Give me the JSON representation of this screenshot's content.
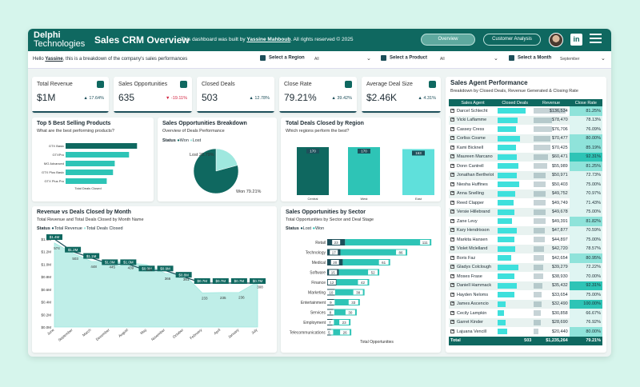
{
  "header": {
    "logo_line1": "Delphi",
    "logo_line2": "Technologies",
    "title": "Sales CRM Overview",
    "byline_prefix": "This dashboard was built by",
    "byline_author": "Yassine Mahboub",
    "byline_suffix": ". All rights reserved © 2025",
    "btn_overview": "Overview",
    "btn_customer": "Customer Analysis",
    "linkedin_label": "in",
    "colors": {
      "header_bg": "#0f6860",
      "accent": "#2ec4b6",
      "dark": "#1d4f5a",
      "negative": "#d21f3c"
    }
  },
  "filterbar": {
    "intro_prefix": "Hello",
    "intro_user": "Yassine",
    "intro_suffix": ", this is a breakdown of the company's sales performances",
    "region_label": "Select a Region",
    "region_value": "All",
    "product_label": "Select a Product",
    "product_value": "All",
    "month_label": "Select a Month",
    "month_value": "September"
  },
  "kpis": [
    {
      "label": "Total Revenue",
      "value": "$1M",
      "delta": "▲ 17.64%"
    },
    {
      "label": "Sales Opportunities",
      "value": "635",
      "delta": "▼ -19.11%"
    },
    {
      "label": "Closed Deals",
      "value": "503",
      "delta": "▲ 12.78%"
    },
    {
      "label": "Close Rate",
      "value": "79.21%",
      "delta": "▲ 39.42%"
    },
    {
      "label": "Average Deal Size",
      "value": "$2.46K",
      "delta": "▲ 4.31%"
    }
  ],
  "top_products": {
    "title": "Top 5 Best Selling Products",
    "subtitle": "What are the best performing products?",
    "xlabel": "Total Deals Closed"
  },
  "opp_breakdown": {
    "title": "Sales Opportunities Breakdown",
    "subtitle": "Overview of Deals Performance",
    "legend_title": "Status",
    "legend_won": "Won",
    "legend_lost": "Lost",
    "label_lost": "Lost 20.79%",
    "label_won": "Won 79.21%"
  },
  "region_deals": {
    "title": "Total Deals Closed by Region",
    "subtitle": "Which regions perform the best?"
  },
  "rev_vs_deals": {
    "title": "Revenue vs Deals Closed by Month",
    "subtitle": "Total Revenue and Total Deals Closed by Month Name",
    "legend_title": "Status",
    "legend_rev": "Total Revenue",
    "legend_deals": "Total Deals Closed"
  },
  "sector_opps": {
    "title": "Sales Opportunities by Sector",
    "subtitle": "Total Opportunities by Sector and Deal Stage",
    "legend_title": "Status",
    "legend_lost": "Lost",
    "legend_won": "Won",
    "xlabel": "Total Opportunities"
  },
  "agent_perf": {
    "title": "Sales Agent Performance",
    "subtitle": "Breakdown by Closed Deals, Revenue Generated & Closing Rate",
    "col_agent": "Sales Agent",
    "col_closed": "Closed Deals",
    "col_revenue": "Revenue",
    "col_rate": "Close Rate",
    "rows": [
      {
        "name": "Darcel Schlecht",
        "closed": "",
        "revenue": "$136,534",
        "rate": "81.25%"
      },
      {
        "name": "Vicki Laflamme",
        "closed": "",
        "revenue": "$78,470",
        "rate": "78.13%"
      },
      {
        "name": "Cassey Cress",
        "closed": "",
        "revenue": "$76,706",
        "rate": "76.09%"
      },
      {
        "name": "Corliss Cosme",
        "closed": "",
        "revenue": "$70,477",
        "rate": "80.00%"
      },
      {
        "name": "Kami Bicknell",
        "closed": "",
        "revenue": "$70,425",
        "rate": "85.19%"
      },
      {
        "name": "Maureen Marcano",
        "closed": "",
        "revenue": "$60,471",
        "rate": "92.31%"
      },
      {
        "name": "Donn Cantrell",
        "closed": "",
        "revenue": "$55,989",
        "rate": "81.25%"
      },
      {
        "name": "Jonathan Berthelot",
        "closed": "",
        "revenue": "$50,971",
        "rate": "72.73%"
      },
      {
        "name": "Niesha Huffines",
        "closed": "",
        "revenue": "$50,403",
        "rate": "75.00%"
      },
      {
        "name": "Anna Snelling",
        "closed": "",
        "revenue": "$49,752",
        "rate": "70.97%"
      },
      {
        "name": "Reed Clapper",
        "closed": "",
        "revenue": "$49,749",
        "rate": "71.43%"
      },
      {
        "name": "Versie Hillebrand",
        "closed": "",
        "revenue": "$49,678",
        "rate": "75.00%"
      },
      {
        "name": "Zane Levy",
        "closed": "",
        "revenue": "$49,391",
        "rate": "81.82%"
      },
      {
        "name": "Kary Hendrixson",
        "closed": "",
        "revenue": "$47,877",
        "rate": "70.59%"
      },
      {
        "name": "Markita Hansen",
        "closed": "",
        "revenue": "$44,897",
        "rate": "75.00%"
      },
      {
        "name": "Violet Mclelland",
        "closed": "",
        "revenue": "$42,720",
        "rate": "78.57%"
      },
      {
        "name": "Boris Faz",
        "closed": "",
        "revenue": "$42,654",
        "rate": "80.95%"
      },
      {
        "name": "Gladys Colclough",
        "closed": "",
        "revenue": "$39,279",
        "rate": "72.22%"
      },
      {
        "name": "Moses Frase",
        "closed": "",
        "revenue": "$38,930",
        "rate": "70.00%"
      },
      {
        "name": "Daniell Hammack",
        "closed": "",
        "revenue": "$35,432",
        "rate": "92.31%"
      },
      {
        "name": "Hayden Neloms",
        "closed": "",
        "revenue": "$33,654",
        "rate": "75.00%"
      },
      {
        "name": "James Ascencio",
        "closed": "",
        "revenue": "$32,490",
        "rate": "100.00%"
      },
      {
        "name": "Cecily Lampkin",
        "closed": "",
        "revenue": "$30,858",
        "rate": "66.67%"
      },
      {
        "name": "Garret Kinder",
        "closed": "",
        "revenue": "$28,690",
        "rate": "76.92%"
      },
      {
        "name": "Lajuana Vencill",
        "closed": "",
        "revenue": "$20,440",
        "rate": "80.00%"
      }
    ],
    "total_label": "Total",
    "total_closed": "503",
    "total_revenue": "$1,235,264",
    "total_rate": "79.21%"
  },
  "chart_data": [
    {
      "id": "top_products",
      "type": "bar",
      "orientation": "horizontal",
      "title": "Top 5 Best Selling Products",
      "categories": [
        "GTX Basic",
        "GTXPro",
        "MG Advanced",
        "GTX Plus Basic",
        "GTX Plus Pro"
      ],
      "values": [
        125,
        111,
        86,
        83,
        72
      ],
      "xlabel": "Total Deals Closed"
    },
    {
      "id": "opp_breakdown",
      "type": "pie",
      "title": "Sales Opportunities Breakdown",
      "labels": [
        "Won",
        "Lost"
      ],
      "values": [
        79.21,
        20.79
      ]
    },
    {
      "id": "region_deals",
      "type": "bar",
      "title": "Total Deals Closed by Region",
      "categories": [
        "Central",
        "West",
        "East"
      ],
      "values": [
        170,
        170,
        163
      ],
      "value_labels": [
        "170",
        "170",
        "163"
      ]
    },
    {
      "id": "rev_vs_deals",
      "type": "area",
      "title": "Revenue vs Deals Closed by Month",
      "categories": [
        "June",
        "September",
        "March",
        "December",
        "August",
        "May",
        "November",
        "October",
        "February",
        "April",
        "January",
        "July"
      ],
      "series": [
        {
          "name": "Total Revenue",
          "values": [
            1.4,
            1.2,
            1.1,
            1.0,
            1.0,
            0.9,
            0.9,
            0.8,
            0.7,
            0.7,
            0.7,
            0.7
          ],
          "labels": [
            "$1.4M",
            "$1.2M",
            "$1.1M",
            "$1.0M",
            "$1.0M",
            "$0.9M",
            "$0.9M",
            "$0.8M",
            "$0.7M",
            "$0.7M",
            "$0.7M",
            "$0.7M"
          ]
        },
        {
          "name": "Total Deals Closed",
          "values": [
            574,
            503,
            448,
            445,
            439,
            425,
            366,
            361,
            233,
            235,
            236,
            308
          ]
        }
      ],
      "y_axis_left_ticks": [
        "$0.0M",
        "$0.2M",
        "$0.4M",
        "$0.6M",
        "$0.8M",
        "$1.0M",
        "$1.2M",
        "$1.4M"
      ]
    },
    {
      "id": "sector_opps",
      "type": "bar",
      "orientation": "horizontal",
      "stacked": true,
      "title": "Sales Opportunities by Sector",
      "categories": [
        "Retail",
        "Technology",
        "Medical",
        "Software",
        "Finance",
        "Marketing",
        "Entertainment",
        "Services",
        "Employment",
        "Telecommunications"
      ],
      "series": [
        {
          "name": "Lost",
          "values": [
            23,
            17,
            20,
            15,
            12,
            10,
            9,
            8,
            7,
            5
          ]
        },
        {
          "name": "Won",
          "values": [
            111,
            86,
            61,
            52,
            42,
            38,
            33,
            30,
            23,
            26
          ]
        }
      ],
      "xlabel": "Total Opportunities"
    },
    {
      "id": "agent_perf",
      "type": "table",
      "title": "Sales Agent Performance",
      "closed_deals": [
        35,
        25,
        23,
        28,
        23,
        24,
        26,
        24,
        27,
        22,
        20,
        21,
        18,
        24,
        21,
        22,
        17,
        26,
        21,
        24,
        21,
        10,
        8,
        10,
        12
      ]
    }
  ]
}
